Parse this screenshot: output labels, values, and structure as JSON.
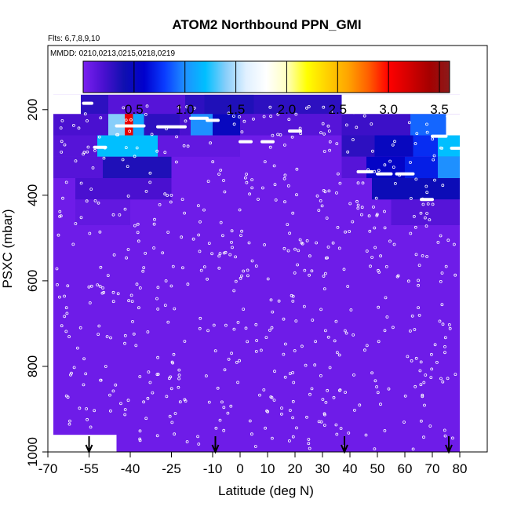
{
  "chart_data": {
    "type": "heatmap",
    "title": "ATOM2 Northbound PPN_GMI",
    "subtitle_flights": "Flts: 6,7,8,9,10",
    "subtitle_dates": "MMDD: 0210,0213,0215,0218,0219",
    "xlabel": "Latitude (deg N)",
    "ylabel": "PSXC (mbar)",
    "xlim": [
      -70,
      90
    ],
    "ylim": [
      1000,
      50
    ],
    "x_ticks": [
      -70,
      -55,
      -40,
      -25,
      -10,
      0,
      10,
      20,
      30,
      40,
      50,
      60,
      70,
      80
    ],
    "x_tick_labels": [
      "-70",
      "-55",
      "-40",
      "-25",
      "-10",
      "0",
      "10",
      "20",
      "30",
      "40",
      "50",
      "60",
      "70",
      "80"
    ],
    "y_ticks": [
      200,
      400,
      600,
      800,
      1000
    ],
    "y_tick_labels": [
      "200",
      "400",
      "600",
      "800",
      "1000"
    ],
    "colorbar": {
      "min": 0,
      "max": 3.6,
      "tick_values": [
        0.5,
        1.0,
        1.5,
        2.0,
        2.5,
        3.0,
        3.5
      ],
      "tick_labels": [
        "0.5",
        "1.0",
        "1.5",
        "2.0",
        "2.5",
        "3.0",
        "3.5"
      ],
      "colors": [
        "#7a20f0",
        "#4a10d0",
        "#1010b0",
        "#0000cd",
        "#0a3cff",
        "#1e90ff",
        "#00bfff",
        "#87cefa",
        "#e0f0ff",
        "#ffffff",
        "#ffffc0",
        "#ffff00",
        "#ffd000",
        "#ffa500",
        "#ff6000",
        "#ff0000",
        "#d40000",
        "#a50000",
        "#8b1a1a"
      ]
    },
    "background_value": 0.05,
    "cells": [
      {
        "lat0": -58,
        "lat1": 37,
        "p0": 165,
        "p1": 210,
        "v": 0.3
      },
      {
        "lat0": -48,
        "lat1": -20,
        "p0": 165,
        "p1": 210,
        "v": 0.15
      },
      {
        "lat0": -13,
        "lat1": 5,
        "p0": 165,
        "p1": 210,
        "v": 0.35
      },
      {
        "lat0": 37,
        "lat1": 75,
        "p0": 210,
        "p1": 260,
        "v": 0.25
      },
      {
        "lat0": -68,
        "lat1": 37,
        "p0": 210,
        "p1": 260,
        "v": 0.2
      },
      {
        "lat0": -48,
        "lat1": -42,
        "p0": 210,
        "p1": 260,
        "v": 1.4
      },
      {
        "lat0": -42,
        "lat1": -39,
        "p0": 210,
        "p1": 260,
        "v": 3.1
      },
      {
        "lat0": -39,
        "lat1": -35,
        "p0": 210,
        "p1": 260,
        "v": 1.1
      },
      {
        "lat0": -35,
        "lat1": -22,
        "p0": 210,
        "p1": 260,
        "v": 0.3
      },
      {
        "lat0": -18,
        "lat1": -10,
        "p0": 210,
        "p1": 260,
        "v": 1.0
      },
      {
        "lat0": -10,
        "lat1": 0,
        "p0": 210,
        "p1": 260,
        "v": 0.5
      },
      {
        "lat0": 0,
        "lat1": 37,
        "p0": 210,
        "p1": 260,
        "v": 0.15
      },
      {
        "lat0": 62,
        "lat1": 75,
        "p0": 210,
        "p1": 260,
        "v": 0.9
      },
      {
        "lat0": -68,
        "lat1": -52,
        "p0": 260,
        "p1": 310,
        "v": 0.15
      },
      {
        "lat0": -52,
        "lat1": -30,
        "p0": 260,
        "p1": 310,
        "v": 1.2
      },
      {
        "lat0": -30,
        "lat1": 0,
        "p0": 260,
        "p1": 310,
        "v": 0.1
      },
      {
        "lat0": 37,
        "lat1": 49,
        "p0": 260,
        "p1": 310,
        "v": 0.3
      },
      {
        "lat0": 49,
        "lat1": 63,
        "p0": 260,
        "p1": 310,
        "v": 0.5
      },
      {
        "lat0": 63,
        "lat1": 72,
        "p0": 260,
        "p1": 310,
        "v": 0.75
      },
      {
        "lat0": 72,
        "lat1": 80,
        "p0": 260,
        "p1": 310,
        "v": 1.2
      },
      {
        "lat0": -68,
        "lat1": -50,
        "p0": 310,
        "p1": 360,
        "v": 0.15
      },
      {
        "lat0": -50,
        "lat1": -25,
        "p0": 310,
        "p1": 360,
        "v": 0.35
      },
      {
        "lat0": 37,
        "lat1": 46,
        "p0": 310,
        "p1": 360,
        "v": 0.15
      },
      {
        "lat0": 46,
        "lat1": 60,
        "p0": 310,
        "p1": 360,
        "v": 0.55
      },
      {
        "lat0": 60,
        "lat1": 72,
        "p0": 310,
        "p1": 360,
        "v": 0.7
      },
      {
        "lat0": 72,
        "lat1": 80,
        "p0": 310,
        "p1": 360,
        "v": 1.0
      },
      {
        "lat0": -60,
        "lat1": -25,
        "p0": 360,
        "p1": 410,
        "v": 0.2
      },
      {
        "lat0": 48,
        "lat1": 80,
        "p0": 360,
        "p1": 410,
        "v": 0.45
      },
      {
        "lat0": -60,
        "lat1": -40,
        "p0": 410,
        "p1": 470,
        "v": 0.1
      },
      {
        "lat0": 55,
        "lat1": 80,
        "p0": 410,
        "p1": 470,
        "v": 0.15
      }
    ],
    "missing_regions": [
      {
        "lat0": -70,
        "lat1": -68,
        "p0": 50,
        "p1": 1000
      },
      {
        "lat0": 80,
        "lat1": 90,
        "p0": 50,
        "p1": 1000
      },
      {
        "lat0": -68,
        "lat1": 80,
        "p0": 50,
        "p1": 165
      },
      {
        "lat0": -68,
        "lat1": -58,
        "p0": 165,
        "p1": 210
      },
      {
        "lat0": 37,
        "lat1": 80,
        "p0": 165,
        "p1": 210
      },
      {
        "lat0": 75,
        "lat1": 80,
        "p0": 210,
        "p1": 260
      },
      {
        "lat0": -68,
        "lat1": -45,
        "p0": 960,
        "p1": 1000
      }
    ],
    "flight_segments": [
      {
        "lat0": -63,
        "lat1": -60,
        "p": 195
      },
      {
        "lat0": -57,
        "lat1": -54,
        "p": 185
      },
      {
        "lat0": -45,
        "lat1": -35,
        "p": 238
      },
      {
        "lat0": -30,
        "lat1": -20,
        "p": 240
      },
      {
        "lat0": -18,
        "lat1": -12,
        "p": 220
      },
      {
        "lat0": -12,
        "lat1": -8,
        "p": 225
      },
      {
        "lat0": -53,
        "lat1": -49,
        "p": 288
      },
      {
        "lat0": 0,
        "lat1": 4,
        "p": 275
      },
      {
        "lat0": 8,
        "lat1": 12,
        "p": 275
      },
      {
        "lat0": 18,
        "lat1": 22,
        "p": 250
      },
      {
        "lat0": 43,
        "lat1": 48,
        "p": 345
      },
      {
        "lat0": 50,
        "lat1": 55,
        "p": 350
      },
      {
        "lat0": 57,
        "lat1": 63,
        "p": 350
      },
      {
        "lat0": 66,
        "lat1": 70,
        "p": 410
      },
      {
        "lat0": 70,
        "lat1": 75,
        "p": 262
      },
      {
        "lat0": 77,
        "lat1": 80,
        "p": 290
      }
    ],
    "arrows_lat": [
      -55,
      -9,
      38,
      76
    ]
  }
}
